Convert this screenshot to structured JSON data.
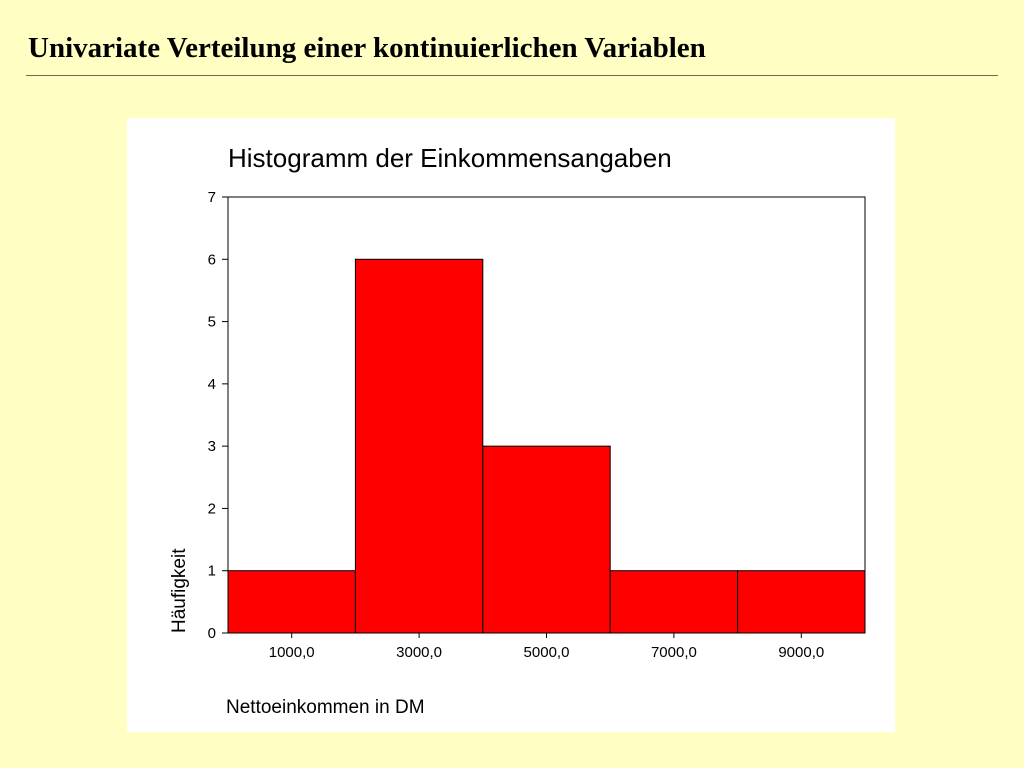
{
  "slide": {
    "title": "Univariate Verteilung einer kontinuierlichen Variablen"
  },
  "chart_data": {
    "type": "bar",
    "title": "Histogramm der Einkommensangaben",
    "xlabel": "Nettoeinkommen in DM",
    "ylabel": "Häufigkeit",
    "bins": [
      {
        "from": 0,
        "to": 2000,
        "count": 1
      },
      {
        "from": 2000,
        "to": 4000,
        "count": 6
      },
      {
        "from": 4000,
        "to": 6000,
        "count": 3
      },
      {
        "from": 6000,
        "to": 8000,
        "count": 1
      },
      {
        "from": 8000,
        "to": 10000,
        "count": 1
      }
    ],
    "categories": [
      "1000,0",
      "3000,0",
      "5000,0",
      "7000,0",
      "9000,0"
    ],
    "values": [
      1,
      6,
      3,
      1,
      1
    ],
    "xlim": [
      0,
      10000
    ],
    "ylim": [
      0,
      7
    ],
    "yticks": [
      0,
      1,
      2,
      3,
      4,
      5,
      6,
      7
    ],
    "xticks": [
      1000,
      3000,
      5000,
      7000,
      9000
    ],
    "grid": false,
    "legend": "none",
    "bar_color": "#ff0000",
    "bar_edge_color": "#000000"
  }
}
